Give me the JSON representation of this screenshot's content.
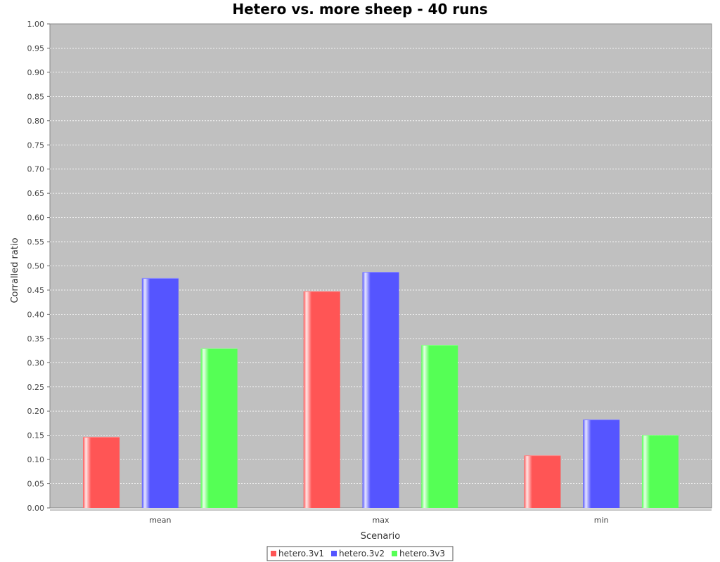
{
  "chart_data": {
    "type": "bar",
    "title": "Hetero vs. more sheep - 40 runs",
    "xlabel": "Scenario",
    "ylabel": "Corralled ratio",
    "categories": [
      "mean",
      "max",
      "min"
    ],
    "series": [
      {
        "name": "hetero.3v1",
        "color": "#ff5555",
        "values": [
          0.146,
          0.447,
          0.108
        ]
      },
      {
        "name": "hetero.3v2",
        "color": "#5555ff",
        "values": [
          0.474,
          0.487,
          0.182
        ]
      },
      {
        "name": "hetero.3v3",
        "color": "#55ff55",
        "values": [
          0.329,
          0.336,
          0.15
        ]
      }
    ],
    "ylim": [
      0,
      1.0
    ],
    "yticks": [
      "0.00",
      "0.05",
      "0.10",
      "0.15",
      "0.20",
      "0.25",
      "0.30",
      "0.35",
      "0.40",
      "0.45",
      "0.50",
      "0.55",
      "0.60",
      "0.65",
      "0.70",
      "0.75",
      "0.80",
      "0.85",
      "0.90",
      "0.95",
      "1.00"
    ],
    "grid": true,
    "legend_position": "bottom",
    "plot_background": "#c0c0c0"
  }
}
